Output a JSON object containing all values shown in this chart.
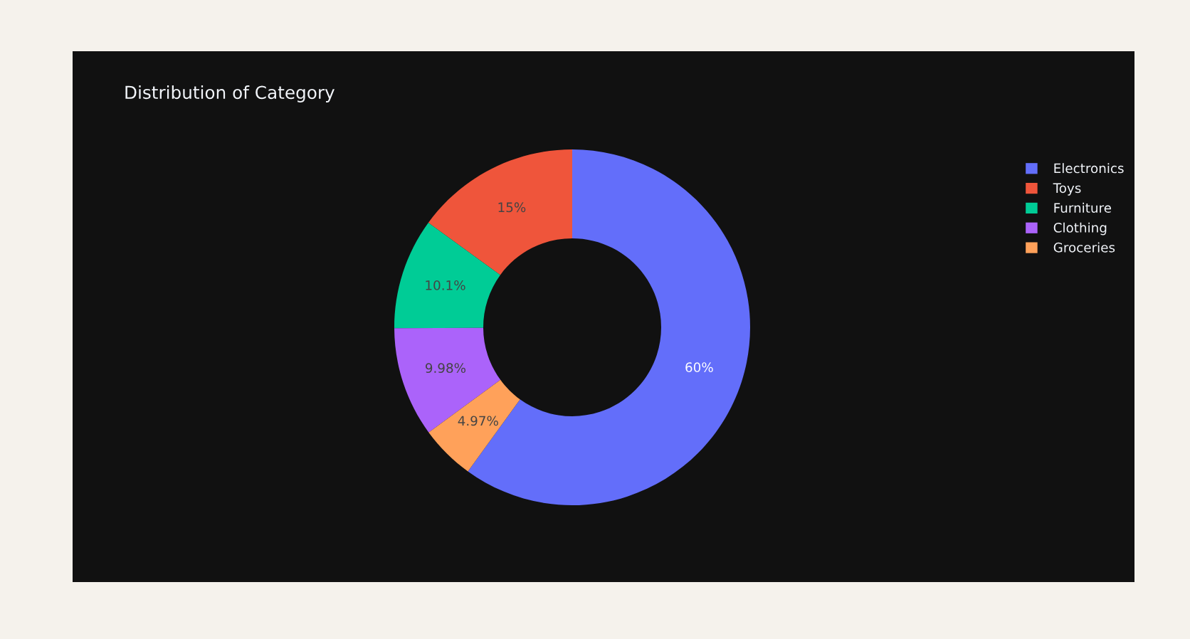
{
  "chart_data": {
    "type": "donut",
    "title": "Distribution of Category",
    "categories": [
      "Electronics",
      "Toys",
      "Furniture",
      "Clothing",
      "Groceries"
    ],
    "values": [
      60,
      15,
      10.1,
      9.98,
      4.97
    ],
    "colors": [
      "#636efa",
      "#ef553b",
      "#00cc96",
      "#ab63fa",
      "#ffa15a"
    ],
    "value_labels": [
      "60%",
      "15%",
      "10.1%",
      "9.98%",
      "4.97%"
    ],
    "legend": "top right"
  }
}
